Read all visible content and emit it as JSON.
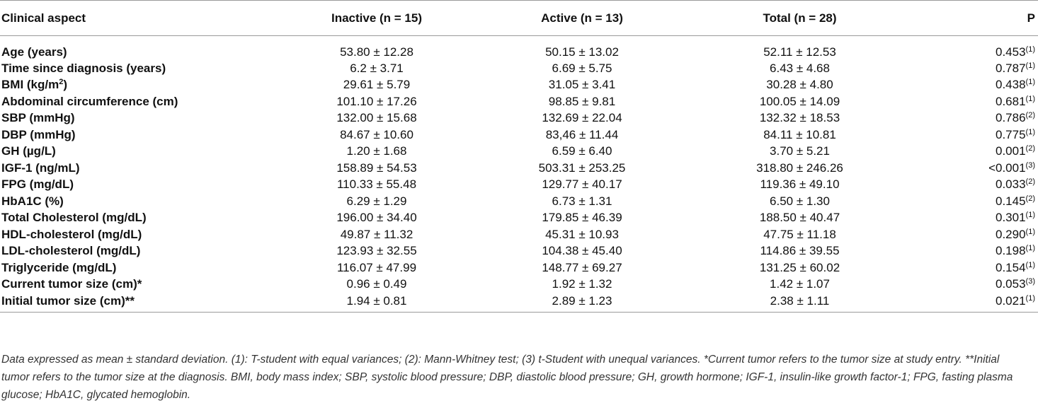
{
  "table": {
    "headers": [
      "Clinical aspect",
      "Inactive (n = 15)",
      "Active (n = 13)",
      "Total (n = 28)",
      "P"
    ],
    "rows": [
      {
        "aspect": "Age (years)",
        "inactive": "53.80 ± 12.28",
        "active": "50.15 ± 13.02",
        "total": "52.11 ± 12.53",
        "p": "0.453",
        "p_note": "(1)"
      },
      {
        "aspect": "Time since diagnosis (years)",
        "inactive": "6.2 ± 3.71",
        "active": "6.69 ± 5.75",
        "total": "6.43 ± 4.68",
        "p": "0.787",
        "p_note": "(1)"
      },
      {
        "aspect": "BMI (kg/m",
        "aspect_sup": "2",
        "aspect_suffix": ")",
        "inactive": "29.61 ± 5.79",
        "active": "31.05 ± 3.41",
        "total": "30.28 ± 4.80",
        "p": "0.438",
        "p_note": "(1)"
      },
      {
        "aspect": "Abdominal circumference (cm)",
        "inactive": "101.10 ± 17.26",
        "active": "98.85 ± 9.81",
        "total": "100.05 ± 14.09",
        "p": "0.681",
        "p_note": "(1)"
      },
      {
        "aspect": "SBP (mmHg)",
        "inactive": "132.00 ± 15.68",
        "active": "132.69 ± 22.04",
        "total": "132.32 ± 18.53",
        "p": "0.786",
        "p_note": "(2)"
      },
      {
        "aspect": "DBP (mmHg)",
        "inactive": "84.67 ± 10.60",
        "active": "83,46 ± 11.44",
        "total": "84.11 ± 10.81",
        "p": "0.775",
        "p_note": "(1)"
      },
      {
        "aspect": "GH (µg/L)",
        "inactive": "1.20 ± 1.68",
        "active": "6.59 ± 6.40",
        "total": "3.70 ± 5.21",
        "p": "0.001",
        "p_note": "(2)"
      },
      {
        "aspect": "IGF-1 (ng/mL)",
        "inactive": "158.89 ± 54.53",
        "active": "503.31 ± 253.25",
        "total": "318.80 ± 246.26",
        "p": "<0.001",
        "p_note": "(3)"
      },
      {
        "aspect": "FPG (mg/dL)",
        "inactive": "110.33 ± 55.48",
        "active": "129.77 ± 40.17",
        "total": "119.36 ± 49.10",
        "p": "0.033",
        "p_note": "(2)"
      },
      {
        "aspect": "HbA1C (%)",
        "inactive": "6.29 ± 1.29",
        "active": "6.73 ± 1.31",
        "total": "6.50 ± 1.30",
        "p": "0.145",
        "p_note": "(2)"
      },
      {
        "aspect": "Total Cholesterol (mg/dL)",
        "inactive": "196.00 ± 34.40",
        "active": "179.85 ± 46.39",
        "total": "188.50 ± 40.47",
        "p": "0.301",
        "p_note": "(1)"
      },
      {
        "aspect": "HDL-cholesterol (mg/dL)",
        "inactive": "49.87 ± 11.32",
        "active": "45.31 ± 10.93",
        "total": "47.75 ± 11.18",
        "p": "0.290",
        "p_note": "(1)"
      },
      {
        "aspect": "LDL-cholesterol (mg/dL)",
        "inactive": "123.93 ± 32.55",
        "active": "104.38 ± 45.40",
        "total": "114.86 ± 39.55",
        "p": "0.198",
        "p_note": "(1)"
      },
      {
        "aspect": "Triglyceride (mg/dL)",
        "inactive": "116.07 ± 47.99",
        "active": "148.77 ± 69.27",
        "total": "131.25 ± 60.02",
        "p": "0.154",
        "p_note": "(1)"
      },
      {
        "aspect": "Current tumor size (cm)*",
        "inactive": "0.96 ± 0.49",
        "active": "1.92 ± 1.32",
        "total": "1.42 ± 1.07",
        "p": "0.053",
        "p_note": "(3)"
      },
      {
        "aspect": "Initial tumor size (cm)**",
        "inactive": "1.94 ± 0.81",
        "active": "2.89 ± 1.23",
        "total": "2.38 ± 1.11",
        "p": "0.021",
        "p_note": "(1)"
      }
    ]
  },
  "footnote": "Data expressed as mean ± standard deviation. (1): T-student with equal variances; (2): Mann-Whitney test; (3) t-Student with unequal variances. *Current tumor refers to the tumor size at study entry. **Initial tumor refers to the tumor size at the diagnosis. BMI, body mass index; SBP, systolic blood pressure; DBP, diastolic blood pressure; GH, growth hormone; IGF-1, insulin-like growth factor-1; FPG, fasting plasma glucose; HbA1C, glycated hemoglobin."
}
